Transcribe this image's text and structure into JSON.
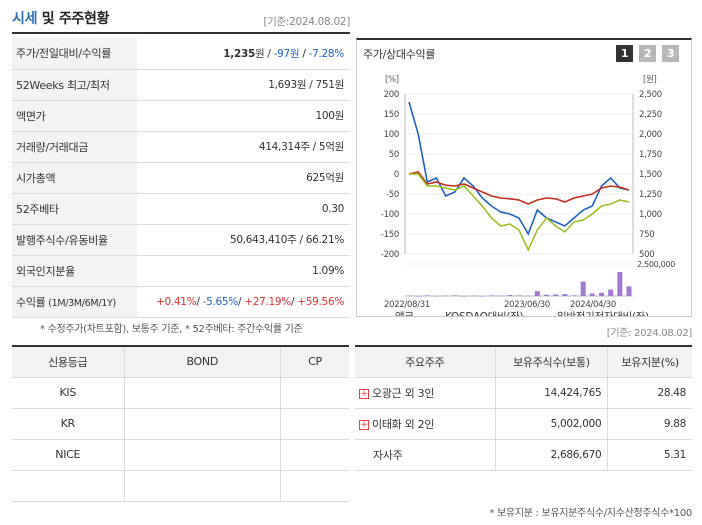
{
  "header": {
    "title_main": "시세",
    "title_rest": " 및 주주현황",
    "date": "[기준:2024.08.02]"
  },
  "info_rows": [
    {
      "label": "주가/전일대비/수익률",
      "parts": [
        {
          "t": "1,235",
          "c": "bold"
        },
        {
          "t": "원 / ",
          "c": ""
        },
        {
          "t": "-97원",
          "c": "blue"
        },
        {
          "t": " / ",
          "c": ""
        },
        {
          "t": "-7.28%",
          "c": "blue"
        }
      ]
    },
    {
      "label": "52Weeks 최고/최저",
      "parts": [
        {
          "t": "1,693원 / 751원",
          "c": ""
        }
      ]
    },
    {
      "label": "액면가",
      "parts": [
        {
          "t": "100원",
          "c": ""
        }
      ]
    },
    {
      "label": "거래량/거래대금",
      "parts": [
        {
          "t": "414,314주 / 5억원",
          "c": ""
        }
      ]
    },
    {
      "label": "시가총액",
      "parts": [
        {
          "t": "625억원",
          "c": ""
        }
      ]
    },
    {
      "label": "52주베타",
      "parts": [
        {
          "t": "0.30",
          "c": ""
        }
      ]
    },
    {
      "label": "발행주식수/유동비율",
      "parts": [
        {
          "t": "50,643,410주 / 66.21%",
          "c": ""
        }
      ]
    },
    {
      "label": "외국인지분율",
      "parts": [
        {
          "t": "1.09%",
          "c": ""
        }
      ]
    },
    {
      "label": "수익률",
      "label_small": "(1M/3M/6M/1Y)",
      "parts": [
        {
          "t": "+0.41%",
          "c": "red"
        },
        {
          "t": "/ ",
          "c": ""
        },
        {
          "t": "-5.65%",
          "c": "blue"
        },
        {
          "t": "/ ",
          "c": ""
        },
        {
          "t": "+27.19%",
          "c": "red"
        },
        {
          "t": "/ ",
          "c": ""
        },
        {
          "t": "+59.56%",
          "c": "red"
        }
      ]
    }
  ],
  "note1": "* 수정주가(차트포함), 보통주 기준, * 52주베타: 주간수익률 기준",
  "chart_panel": {
    "title": "주가/상대수익률",
    "tabs": [
      "1",
      "2",
      "3"
    ]
  },
  "chart_data": {
    "type": "line",
    "left_unit": "[%]",
    "right_unit": "[원]",
    "left_ticks": [
      "200",
      "150",
      "100",
      "50",
      "0",
      "-50",
      "-100",
      "-150",
      "-200"
    ],
    "right_ticks": [
      "2,500",
      "2,250",
      "2,000",
      "1,750",
      "1,500",
      "1,250",
      "1,000",
      "750",
      "500"
    ],
    "volume_tick": "2,500,000",
    "x_ticks": [
      "2022/08/31",
      "2023/06/30",
      "2024/04/30"
    ],
    "ylim": [
      -200,
      200
    ],
    "series": [
      {
        "name": "앱코",
        "color": "#2060c0",
        "values": [
          180,
          100,
          -20,
          -10,
          -55,
          -45,
          -10,
          -30,
          -60,
          -80,
          -95,
          -100,
          -110,
          -150,
          -90,
          -110,
          -120,
          -130,
          -110,
          -90,
          -80,
          -30,
          -10,
          -35,
          -40
        ]
      },
      {
        "name": "KOSDAQ대비(좌)",
        "color": "#c03020",
        "values": [
          0,
          5,
          -25,
          -20,
          -28,
          -30,
          -25,
          -35,
          -45,
          -55,
          -60,
          -62,
          -65,
          -75,
          -65,
          -60,
          -62,
          -70,
          -60,
          -55,
          -50,
          -35,
          -30,
          -33,
          -40
        ]
      },
      {
        "name": "일반전기전자대비(좌)",
        "color": "#9cc020",
        "values": [
          0,
          0,
          -30,
          -30,
          -35,
          -40,
          -30,
          -55,
          -80,
          -110,
          -130,
          -125,
          -140,
          -190,
          -140,
          -110,
          -130,
          -145,
          -120,
          -115,
          -100,
          -80,
          -75,
          -65,
          -70
        ]
      }
    ],
    "volume": {
      "name": "거래량",
      "color": "#a07ad0",
      "values": [
        0.01,
        0,
        0.02,
        0,
        0.01,
        0.02,
        0,
        0.01,
        0,
        0.02,
        0.01,
        0.03,
        0.02,
        0.01,
        0.15,
        0.04,
        0.05,
        0.06,
        0.02,
        0.45,
        0.08,
        0.1,
        0.2,
        0.75,
        0.3
      ]
    }
  },
  "date2": "[기준: 2024.08.02]",
  "credit": {
    "headers": [
      "신용등급",
      "BOND",
      "CP"
    ],
    "rows": [
      [
        "KIS",
        "",
        ""
      ],
      [
        "KR",
        "",
        ""
      ],
      [
        "NICE",
        "",
        ""
      ],
      [
        "",
        "",
        ""
      ]
    ]
  },
  "holders": {
    "headers": [
      "주요주주",
      "보유주식수(보통)",
      "보유지분(%)"
    ],
    "rows": [
      {
        "name": "오광근 외 3인",
        "plus": true,
        "shares": "14,424,765",
        "pct": "28.48"
      },
      {
        "name": "이태화 외 2인",
        "plus": true,
        "shares": "5,002,000",
        "pct": "9.88"
      },
      {
        "name": "자사주",
        "plus": false,
        "shares": "2,686,670",
        "pct": "5.31"
      }
    ]
  },
  "note2": "* 보유지분 : 보유지분주식수/지수산정주식수*100"
}
